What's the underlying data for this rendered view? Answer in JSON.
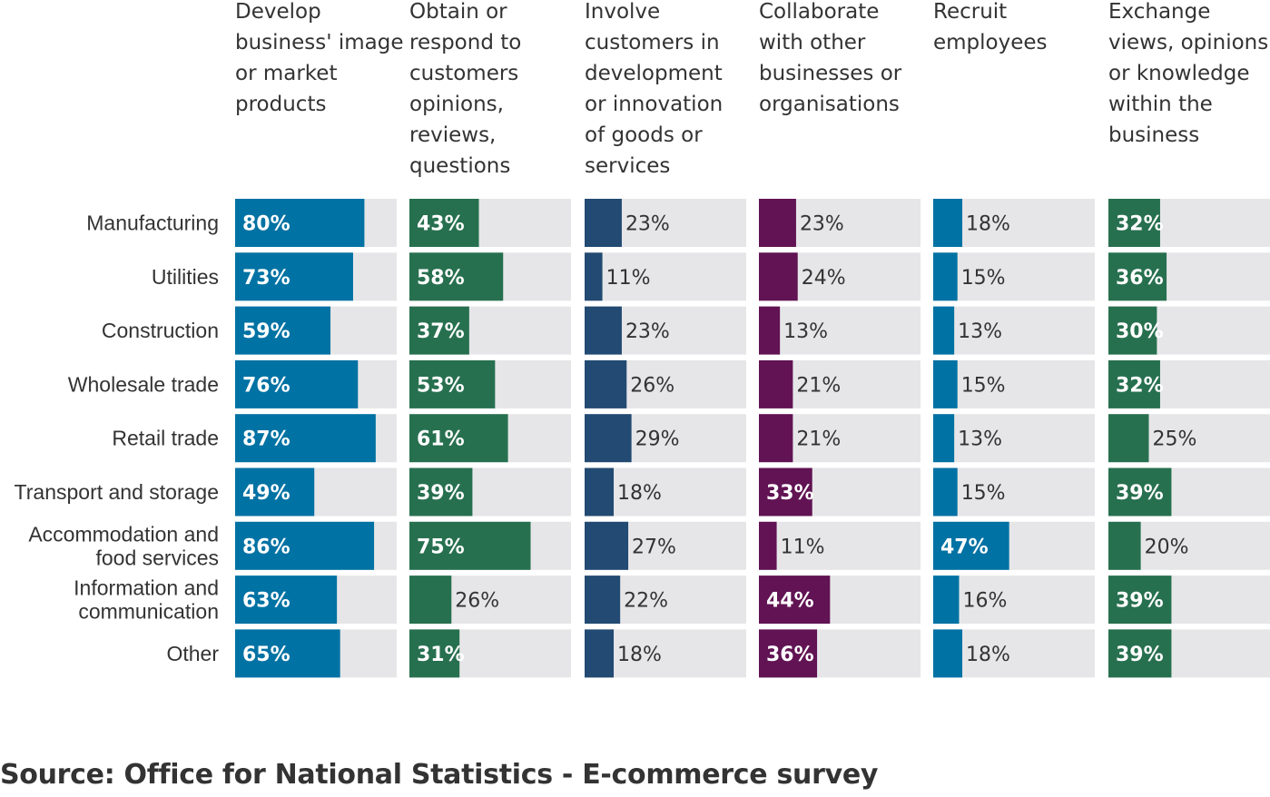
{
  "chart_data": {
    "type": "bar",
    "orientation": "horizontal",
    "layout": "small-multiples",
    "xlim": [
      0,
      100
    ],
    "categories": [
      "Manufacturing",
      "Utilities",
      "Construction",
      "Wholesale trade",
      "Retail trade",
      "Transport and storage",
      "Accommodation and food services",
      "Information and communication",
      "Other"
    ],
    "series": [
      {
        "name": "Develop business' image or market products",
        "color": "#0072a3",
        "values": [
          80,
          73,
          59,
          76,
          87,
          49,
          86,
          63,
          65
        ],
        "labels": [
          "80%",
          "73%",
          "59%",
          "76%",
          "87%",
          "49%",
          "86%",
          "63%",
          "65%"
        ]
      },
      {
        "name": "Obtain or respond to customers opinions, reviews, questions",
        "color": "#27704f",
        "values": [
          43,
          58,
          37,
          53,
          61,
          39,
          75,
          26,
          31
        ],
        "labels": [
          "43%",
          "58%",
          "37%",
          "53%",
          "61%",
          "39%",
          "75%",
          "26%",
          "31%"
        ]
      },
      {
        "name": "Involve customers in development or innovation of goods or services",
        "color": "#224a72",
        "values": [
          23,
          11,
          23,
          26,
          29,
          18,
          27,
          22,
          18
        ],
        "labels": [
          "23%",
          "11%",
          "23%",
          "26%",
          "29%",
          "18%",
          "27%",
          "22%",
          "18%"
        ]
      },
      {
        "name": "Collaborate with other businesses or organisations",
        "color": "#611353",
        "values": [
          23,
          24,
          13,
          21,
          21,
          33,
          11,
          44,
          36
        ],
        "labels": [
          "23%",
          "24%",
          "13%",
          "21%",
          "21%",
          "33%",
          "11%",
          "44%",
          "36%"
        ]
      },
      {
        "name": "Recruit employees",
        "color": "#0072a3",
        "values": [
          18,
          15,
          13,
          15,
          13,
          15,
          47,
          16,
          18
        ],
        "labels": [
          "18%",
          "15%",
          "13%",
          "15%",
          "13%",
          "15%",
          "47%",
          "16%",
          "18%"
        ]
      },
      {
        "name": "Exchange views, opinions or knowledge within the business",
        "color": "#27704f",
        "values": [
          32,
          36,
          30,
          32,
          25,
          39,
          20,
          39,
          39
        ],
        "labels": [
          "32%",
          "36%",
          "30%",
          "32%",
          "25%",
          "39%",
          "20%",
          "39%",
          "39%"
        ]
      }
    ],
    "header_lines": [
      [
        "Develop",
        "business' image",
        "or market",
        "products"
      ],
      [
        "Obtain or",
        "respond to",
        "customers",
        "opinions,",
        "reviews,",
        "questions"
      ],
      [
        "Involve",
        "customers in",
        "development",
        "or innovation",
        "of goods or",
        "services"
      ],
      [
        "Collaborate",
        "with other",
        "businesses or",
        "organisations"
      ],
      [
        "Recruit",
        "employees"
      ],
      [
        "Exchange",
        "views, opinions",
        "or knowledge",
        "within the",
        "business"
      ]
    ],
    "category_lines": [
      [
        "Manufacturing"
      ],
      [
        "Utilities"
      ],
      [
        "Construction"
      ],
      [
        "Wholesale trade"
      ],
      [
        "Retail trade"
      ],
      [
        "Transport and storage"
      ],
      [
        "Accommodation and",
        "food services"
      ],
      [
        "Information and",
        "communication"
      ],
      [
        "Other"
      ]
    ],
    "background_color": "#e6e6e8",
    "grid": false,
    "legend": "none"
  },
  "source": "Source: Office for National Statistics - E-commerce survey"
}
